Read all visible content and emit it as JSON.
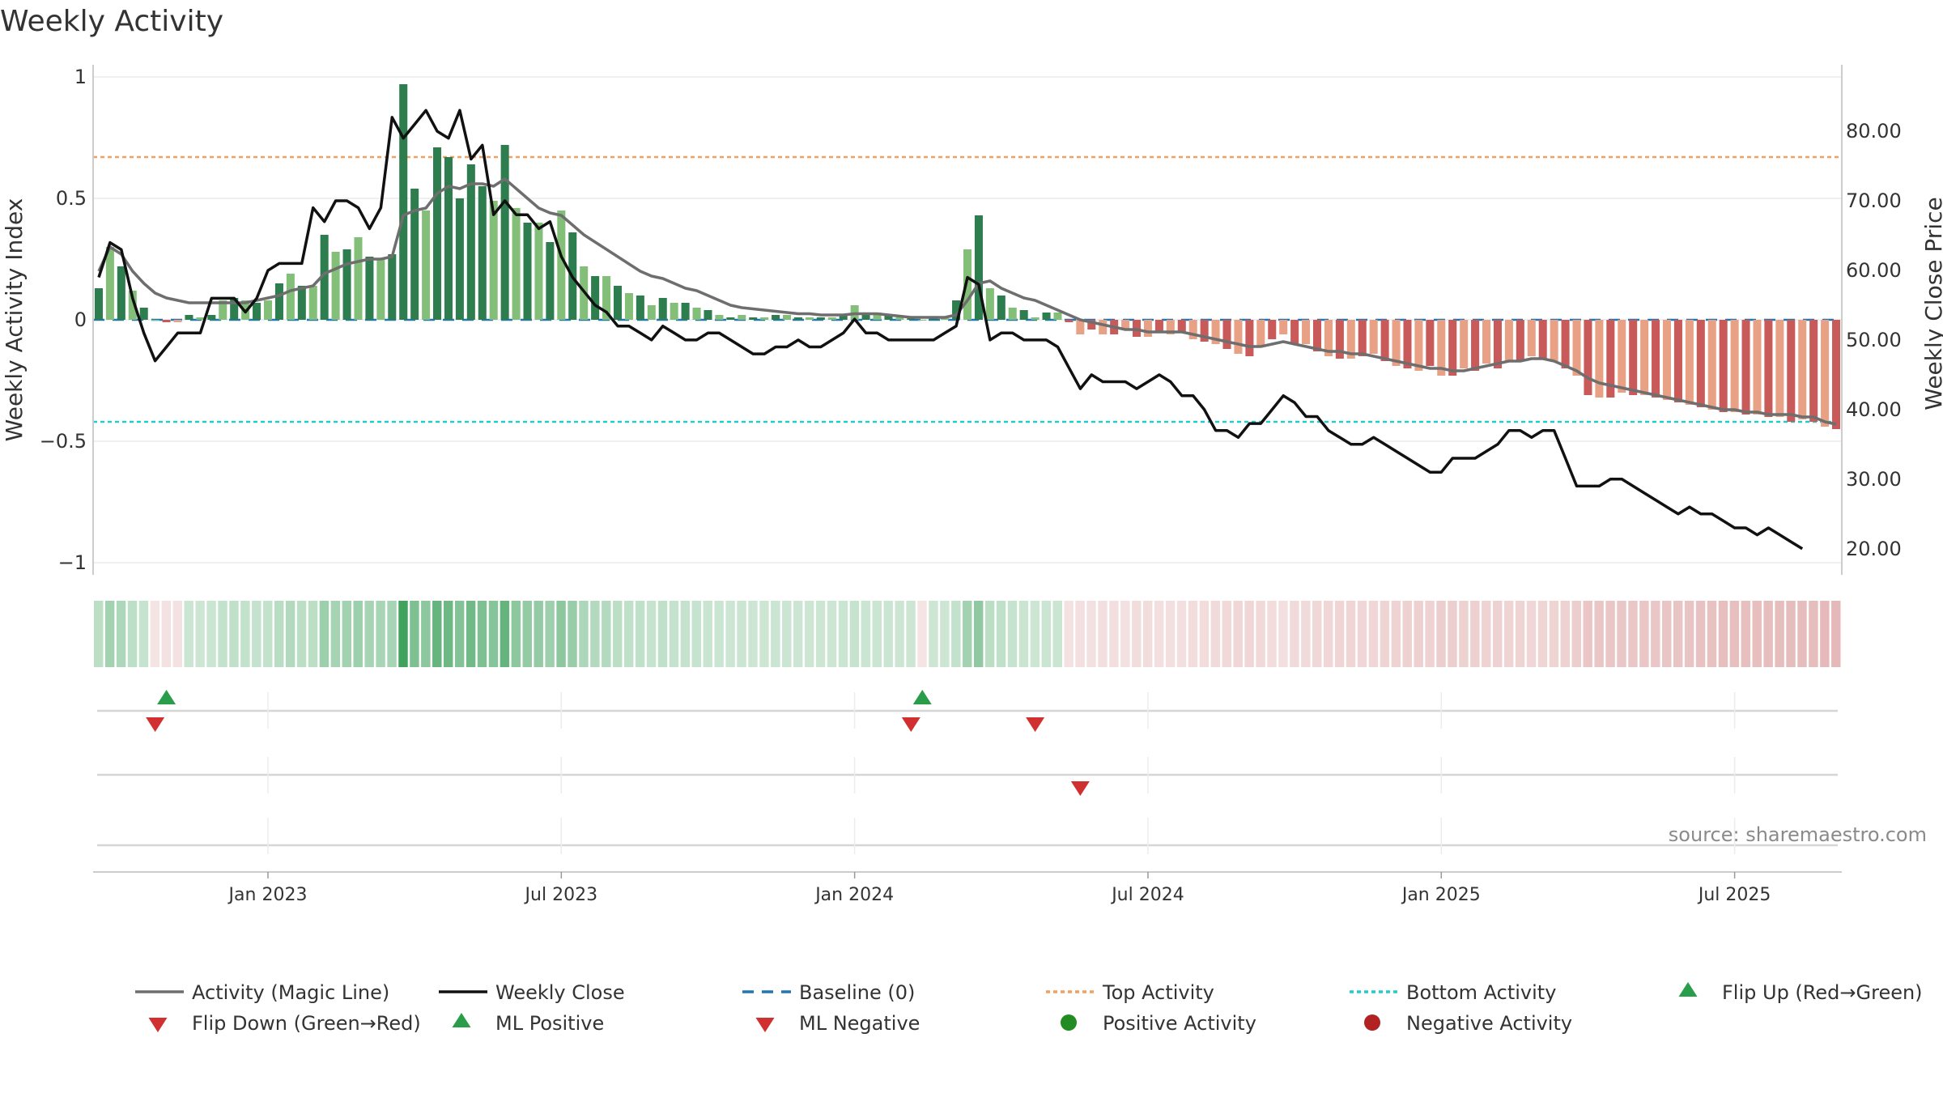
{
  "title": "Weekly Activity",
  "source": "source: sharemaestro.com",
  "colors": {
    "pos_dark": "#2e7d4f",
    "pos_light": "#84bf7a",
    "neg_dark": "#c85a5a",
    "neg_light": "#e8a184",
    "magic": "#6e6e6e",
    "close": "#111111",
    "baseline": "#1f77b4",
    "top": "#f0a060",
    "bottom": "#22cccc",
    "flip_up": "#2a9d4a",
    "flip_down": "#d03030",
    "pos_dot": "#228b22",
    "neg_dot": "#b22222"
  },
  "chart_data": {
    "type": "bar",
    "title": "Weekly Activity",
    "ylabel": "Weekly Activity Index",
    "y2label": "Weekly Close Price",
    "ylim": [
      -1.05,
      1.05
    ],
    "y2lim": [
      16.25,
      89.55
    ],
    "y_ticks": [
      {
        "v": 1,
        "label": "1"
      },
      {
        "v": 0.5,
        "label": "0.5"
      },
      {
        "v": 0,
        "label": "0"
      },
      {
        "v": -0.5,
        "label": "−0.5"
      },
      {
        "v": -1,
        "label": "−1"
      }
    ],
    "y2_ticks": [
      {
        "v": 80,
        "label": "80.00"
      },
      {
        "v": 70,
        "label": "70.00"
      },
      {
        "v": 60,
        "label": "60.00"
      },
      {
        "v": 50,
        "label": "50.00"
      },
      {
        "v": 40,
        "label": "40.00"
      },
      {
        "v": 30,
        "label": "30.00"
      },
      {
        "v": 20,
        "label": "20.00"
      }
    ],
    "x_ticks": [
      {
        "week": 15,
        "label": "Jan 2023"
      },
      {
        "week": 41,
        "label": "Jul 2023"
      },
      {
        "week": 67,
        "label": "Jan 2024"
      },
      {
        "week": 93,
        "label": "Jul 2024"
      },
      {
        "week": 119,
        "label": "Jan 2025"
      },
      {
        "week": 145,
        "label": "Jul 2025"
      }
    ],
    "top_activity": 0.67,
    "bottom_activity": -0.42,
    "baseline": 0,
    "activity": [
      0.13,
      0.3,
      0.22,
      0.12,
      0.05,
      0.0,
      -0.01,
      -0.01,
      0.02,
      0.01,
      0.02,
      0.08,
      0.09,
      0.08,
      0.07,
      0.08,
      0.15,
      0.19,
      0.14,
      0.14,
      0.35,
      0.28,
      0.29,
      0.34,
      0.26,
      0.25,
      0.27,
      0.97,
      0.54,
      0.45,
      0.71,
      0.67,
      0.5,
      0.64,
      0.55,
      0.49,
      0.72,
      0.46,
      0.4,
      0.4,
      0.32,
      0.45,
      0.36,
      0.22,
      0.18,
      0.18,
      0.14,
      0.11,
      0.1,
      0.06,
      0.09,
      0.07,
      0.07,
      0.05,
      0.04,
      0.02,
      0.01,
      0.02,
      0.01,
      0.01,
      0.02,
      0.02,
      0.01,
      0.01,
      0.01,
      0.01,
      0.02,
      0.06,
      0.03,
      0.03,
      0.02,
      0.01,
      0.01,
      0.0,
      0.01,
      0.01,
      0.08,
      0.29,
      0.43,
      0.13,
      0.1,
      0.05,
      0.04,
      0.01,
      0.03,
      0.03,
      -0.01,
      -0.06,
      -0.04,
      -0.06,
      -0.06,
      -0.04,
      -0.07,
      -0.07,
      -0.05,
      -0.06,
      -0.05,
      -0.08,
      -0.09,
      -0.1,
      -0.12,
      -0.14,
      -0.15,
      -0.11,
      -0.08,
      -0.06,
      -0.1,
      -0.1,
      -0.13,
      -0.15,
      -0.16,
      -0.16,
      -0.15,
      -0.14,
      -0.17,
      -0.19,
      -0.2,
      -0.21,
      -0.19,
      -0.23,
      -0.23,
      -0.2,
      -0.21,
      -0.18,
      -0.2,
      -0.17,
      -0.17,
      -0.15,
      -0.16,
      -0.17,
      -0.2,
      -0.23,
      -0.31,
      -0.32,
      -0.32,
      -0.3,
      -0.31,
      -0.31,
      -0.32,
      -0.33,
      -0.34,
      -0.35,
      -0.36,
      -0.37,
      -0.38,
      -0.38,
      -0.39,
      -0.39,
      -0.4,
      -0.4,
      -0.42,
      -0.41,
      -0.42,
      -0.44,
      -0.45
    ],
    "magic_line": [
      0.2,
      0.3,
      0.27,
      0.2,
      0.15,
      0.11,
      0.09,
      0.08,
      0.07,
      0.07,
      0.07,
      0.07,
      0.07,
      0.07,
      0.08,
      0.09,
      0.1,
      0.12,
      0.13,
      0.14,
      0.19,
      0.21,
      0.23,
      0.24,
      0.25,
      0.25,
      0.26,
      0.43,
      0.45,
      0.46,
      0.52,
      0.55,
      0.54,
      0.56,
      0.56,
      0.55,
      0.58,
      0.54,
      0.5,
      0.46,
      0.44,
      0.43,
      0.39,
      0.35,
      0.32,
      0.29,
      0.26,
      0.23,
      0.2,
      0.18,
      0.17,
      0.15,
      0.13,
      0.12,
      0.1,
      0.08,
      0.06,
      0.05,
      0.045,
      0.04,
      0.035,
      0.03,
      0.025,
      0.025,
      0.02,
      0.02,
      0.02,
      0.025,
      0.025,
      0.025,
      0.02,
      0.015,
      0.01,
      0.01,
      0.01,
      0.01,
      0.02,
      0.08,
      0.15,
      0.16,
      0.13,
      0.11,
      0.09,
      0.08,
      0.06,
      0.04,
      0.02,
      0.0,
      -0.01,
      -0.02,
      -0.03,
      -0.04,
      -0.04,
      -0.05,
      -0.05,
      -0.05,
      -0.05,
      -0.06,
      -0.07,
      -0.08,
      -0.09,
      -0.1,
      -0.11,
      -0.11,
      -0.1,
      -0.09,
      -0.1,
      -0.11,
      -0.12,
      -0.13,
      -0.13,
      -0.14,
      -0.14,
      -0.15,
      -0.16,
      -0.17,
      -0.18,
      -0.19,
      -0.2,
      -0.2,
      -0.21,
      -0.21,
      -0.2,
      -0.19,
      -0.18,
      -0.17,
      -0.17,
      -0.16,
      -0.16,
      -0.17,
      -0.19,
      -0.21,
      -0.24,
      -0.26,
      -0.27,
      -0.28,
      -0.29,
      -0.3,
      -0.31,
      -0.32,
      -0.33,
      -0.34,
      -0.35,
      -0.36,
      -0.37,
      -0.37,
      -0.38,
      -0.38,
      -0.39,
      -0.39,
      -0.39,
      -0.4,
      -0.4,
      -0.42,
      -0.43
    ],
    "weekly_close": [
      59,
      64,
      63,
      56,
      51,
      47,
      49,
      51,
      51,
      51,
      56,
      56,
      56,
      54,
      56,
      60,
      61,
      61,
      61,
      69,
      67,
      70,
      70,
      69,
      66,
      69,
      82,
      79,
      81,
      83,
      80,
      79,
      83,
      76,
      78,
      68,
      70,
      68,
      68,
      66,
      67,
      62,
      59,
      57,
      55,
      54,
      52,
      52,
      51,
      50,
      52,
      51,
      50,
      50,
      51,
      51,
      50,
      49,
      48,
      48,
      49,
      49,
      50,
      49,
      49,
      50,
      51,
      53,
      51,
      51,
      50,
      50,
      50,
      50,
      50,
      51,
      52,
      59,
      58,
      50,
      51,
      51,
      50,
      50,
      50,
      49,
      46,
      43,
      45,
      44,
      44,
      44,
      43,
      44,
      45,
      44,
      42,
      42,
      40,
      37,
      37,
      36,
      38,
      38,
      40,
      42,
      41,
      39,
      39,
      37,
      36,
      35,
      35,
      36,
      35,
      34,
      33,
      32,
      31,
      31,
      33,
      33,
      33,
      34,
      35,
      37,
      37,
      36,
      37,
      37,
      33,
      29,
      29,
      29,
      30,
      30,
      29,
      28,
      27,
      26,
      25,
      26,
      25,
      25,
      24,
      23,
      23,
      22,
      23,
      22,
      21,
      20
    ],
    "flip_up": [
      6,
      73
    ],
    "flip_down": [
      5,
      72,
      83
    ],
    "ml_positive": [],
    "ml_negative": [
      87
    ],
    "positive_activity": [],
    "negative_activity": []
  },
  "legend": [
    {
      "label": "Activity (Magic Line)",
      "kind": "line",
      "color": "#6e6e6e",
      "dash": ""
    },
    {
      "label": "Weekly Close",
      "kind": "line",
      "color": "#111111",
      "dash": ""
    },
    {
      "label": "Baseline (0)",
      "kind": "line",
      "color": "#1f77b4",
      "dash": "14 10"
    },
    {
      "label": "Top Activity",
      "kind": "line",
      "color": "#f0a060",
      "dash": "5 4"
    },
    {
      "label": "Bottom Activity",
      "kind": "line",
      "color": "#22cccc",
      "dash": "5 4"
    },
    {
      "label": "Flip Up (Red→Green)",
      "kind": "tri-up",
      "color": "#2a9d4a"
    },
    {
      "label": "Flip Down (Green→Red)",
      "kind": "tri-down",
      "color": "#d03030"
    },
    {
      "label": "ML Positive",
      "kind": "tri-up",
      "color": "#2a9d4a"
    },
    {
      "label": "ML Negative",
      "kind": "tri-down",
      "color": "#d03030"
    },
    {
      "label": "Positive Activity",
      "kind": "dot",
      "color": "#228b22"
    },
    {
      "label": "Negative Activity",
      "kind": "dot",
      "color": "#b22222"
    }
  ]
}
